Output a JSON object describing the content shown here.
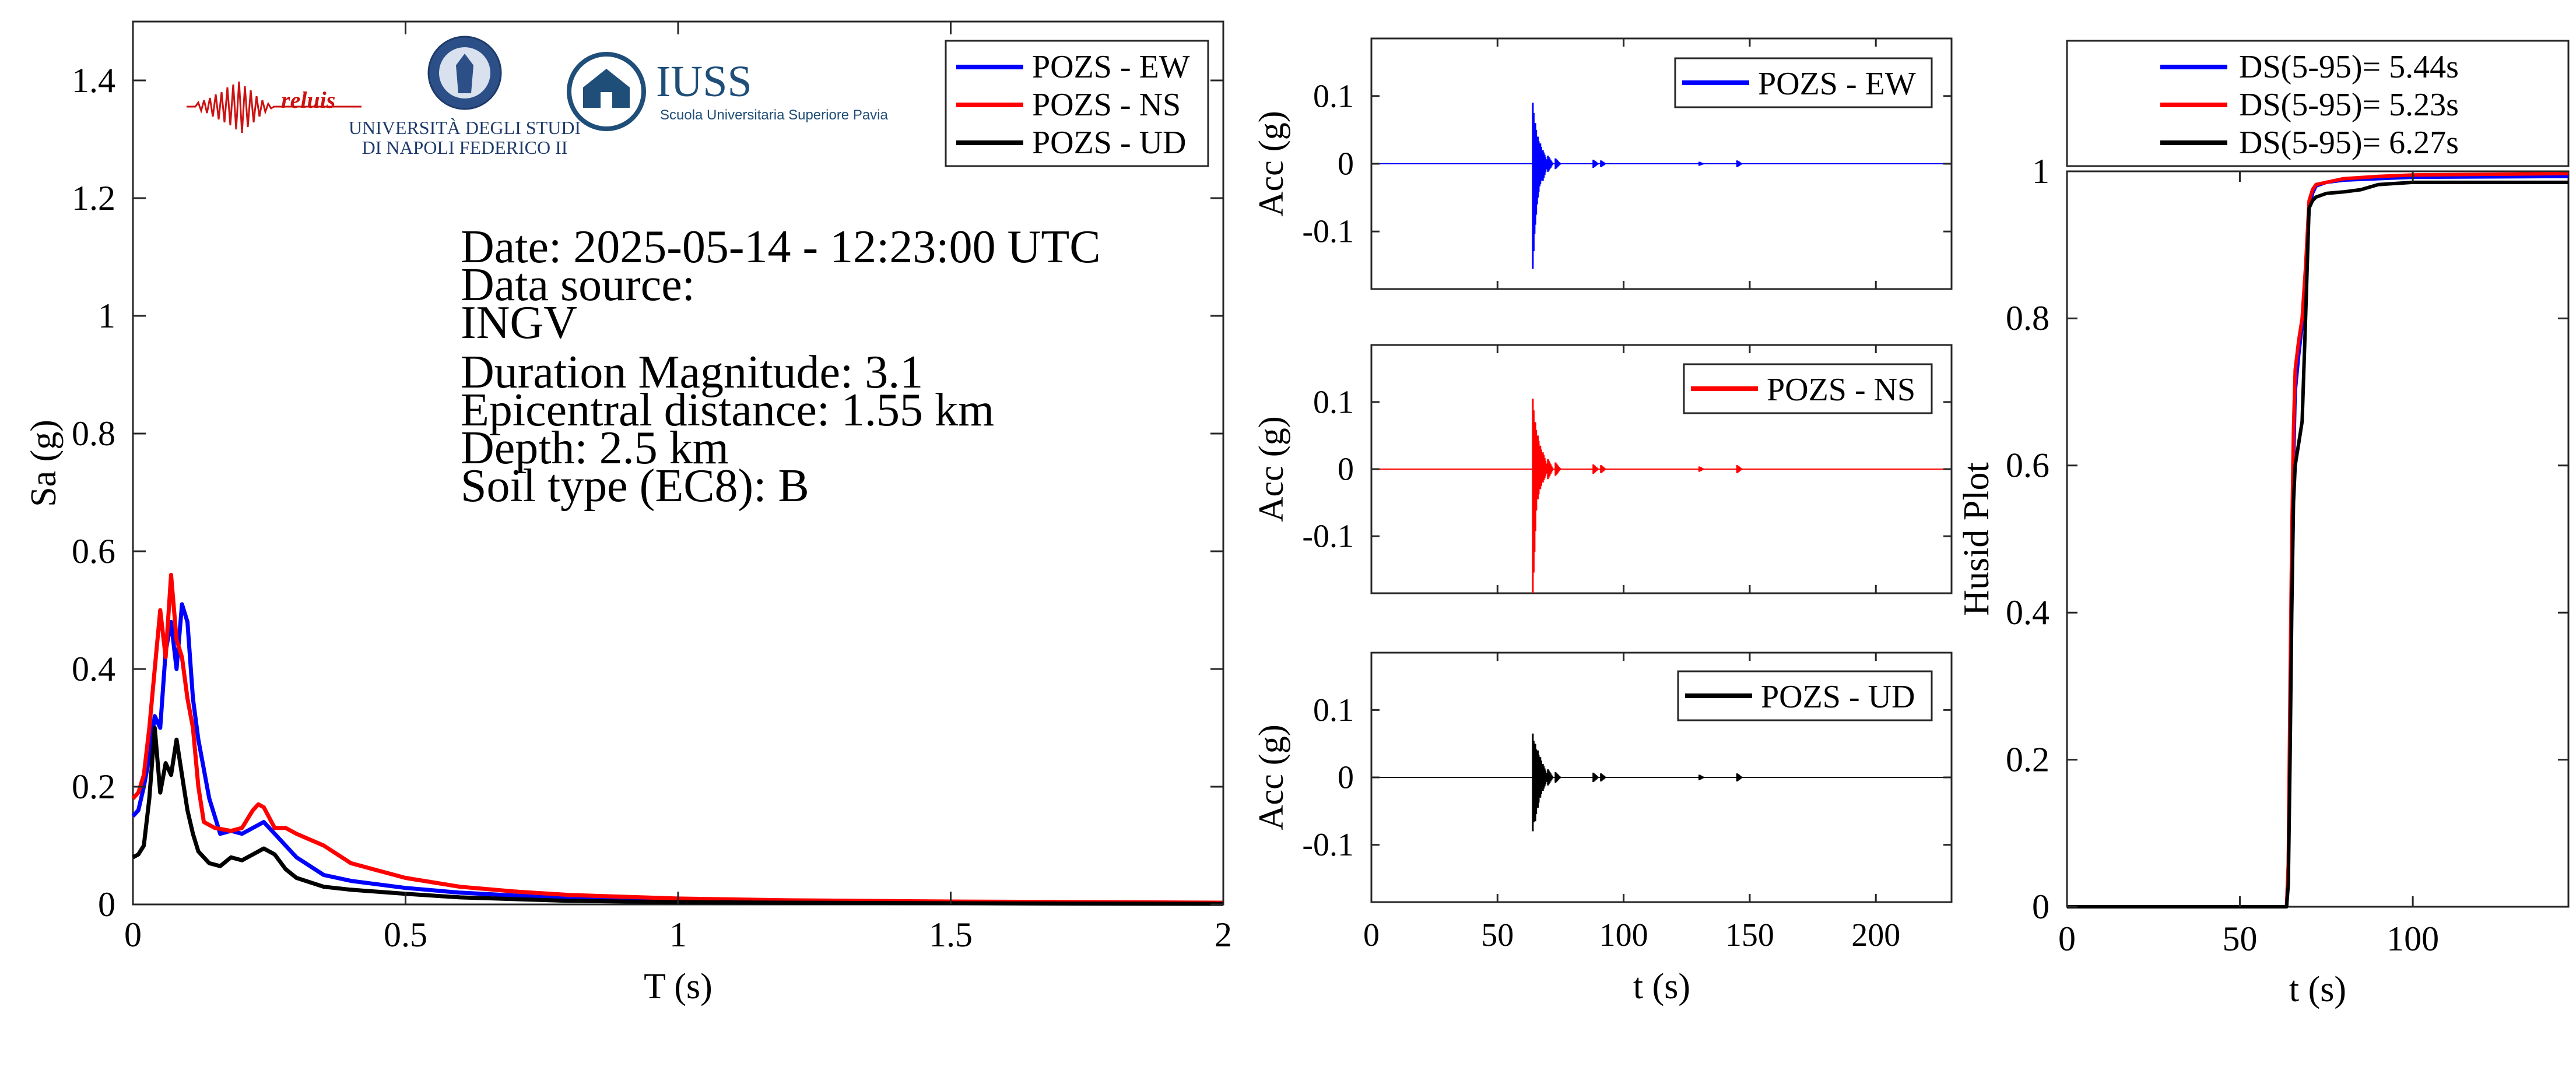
{
  "colors": {
    "ew": "#0000ff",
    "ns": "#ff0000",
    "ud": "#000000",
    "axis": "#262626",
    "reluis": "#cc1111",
    "navy": "#1f4e79",
    "iuss": "#1f4e79"
  },
  "logos": {
    "reluis": "reluis",
    "napoli_line1": "UNIVERSITÀ DEGLI STUDI",
    "napoli_line2": "DI NAPOLI FEDERICO II",
    "iuss_title": "IUSS",
    "iuss_subtitle": "Scuola Universitaria Superiore Pavia"
  },
  "info": {
    "date": "Date: 2025-05-14 - 12:23:00 UTC",
    "source_label": "Data source:",
    "source": "INGV",
    "magnitude": "Duration Magnitude: 3.1",
    "distance": "Epicentral distance: 1.55 km",
    "depth": "Depth: 2.5 km",
    "soil": "Soil type (EC8): B"
  },
  "chart_data": [
    {
      "id": "spectra",
      "type": "line",
      "xlabel": "T (s)",
      "ylabel": "Sa (g)",
      "xlim": [
        0,
        2
      ],
      "ylim": [
        0,
        1.5
      ],
      "xticks": [
        0,
        0.5,
        1,
        1.5,
        2
      ],
      "xtick_labels": [
        "0",
        "0.5",
        "1",
        "1.5",
        "2"
      ],
      "yticks": [
        0,
        0.2,
        0.4,
        0.6,
        0.8,
        1,
        1.2,
        1.4
      ],
      "ytick_labels": [
        "0",
        "0.2",
        "0.4",
        "0.6",
        "0.8",
        "1",
        "1.2",
        "1.4"
      ],
      "grid": false,
      "legend": "top-right",
      "series": [
        {
          "name": "POZS - EW",
          "color": "#0000ff",
          "x": [
            0,
            0.01,
            0.02,
            0.03,
            0.04,
            0.05,
            0.06,
            0.07,
            0.08,
            0.09,
            0.1,
            0.11,
            0.12,
            0.14,
            0.16,
            0.18,
            0.2,
            0.22,
            0.24,
            0.26,
            0.28,
            0.3,
            0.35,
            0.4,
            0.5,
            0.6,
            0.7,
            0.8,
            1.0,
            1.2,
            1.5,
            2.0
          ],
          "y": [
            0.15,
            0.16,
            0.2,
            0.25,
            0.32,
            0.3,
            0.43,
            0.48,
            0.4,
            0.51,
            0.48,
            0.35,
            0.28,
            0.18,
            0.12,
            0.125,
            0.12,
            0.13,
            0.14,
            0.12,
            0.1,
            0.08,
            0.05,
            0.04,
            0.028,
            0.02,
            0.015,
            0.01,
            0.007,
            0.005,
            0.004,
            0.002
          ]
        },
        {
          "name": "POZS - NS",
          "color": "#ff0000",
          "x": [
            0,
            0.01,
            0.02,
            0.03,
            0.04,
            0.05,
            0.06,
            0.07,
            0.08,
            0.09,
            0.1,
            0.11,
            0.12,
            0.13,
            0.15,
            0.18,
            0.2,
            0.22,
            0.23,
            0.24,
            0.26,
            0.28,
            0.3,
            0.35,
            0.4,
            0.5,
            0.6,
            0.7,
            0.8,
            1.0,
            1.2,
            1.5,
            2.0
          ],
          "y": [
            0.18,
            0.19,
            0.22,
            0.3,
            0.4,
            0.5,
            0.42,
            0.56,
            0.45,
            0.42,
            0.35,
            0.3,
            0.2,
            0.14,
            0.13,
            0.125,
            0.13,
            0.16,
            0.17,
            0.165,
            0.13,
            0.13,
            0.12,
            0.1,
            0.07,
            0.045,
            0.03,
            0.022,
            0.016,
            0.01,
            0.007,
            0.005,
            0.003
          ]
        },
        {
          "name": "POZS - UD",
          "color": "#000000",
          "x": [
            0,
            0.01,
            0.02,
            0.03,
            0.04,
            0.05,
            0.06,
            0.07,
            0.08,
            0.09,
            0.1,
            0.11,
            0.12,
            0.14,
            0.16,
            0.18,
            0.2,
            0.22,
            0.24,
            0.26,
            0.28,
            0.3,
            0.35,
            0.4,
            0.5,
            0.6,
            0.7,
            0.8,
            1.0,
            1.2,
            1.5,
            2.0
          ],
          "y": [
            0.08,
            0.085,
            0.1,
            0.18,
            0.3,
            0.19,
            0.24,
            0.22,
            0.28,
            0.22,
            0.16,
            0.12,
            0.09,
            0.07,
            0.065,
            0.08,
            0.075,
            0.085,
            0.095,
            0.085,
            0.06,
            0.045,
            0.03,
            0.025,
            0.018,
            0.012,
            0.009,
            0.006,
            0.004,
            0.003,
            0.002,
            0.001
          ]
        }
      ]
    },
    {
      "id": "acc-ew",
      "type": "line",
      "xlabel": "",
      "ylabel": "Acc (g)",
      "xlim": [
        0,
        230
      ],
      "ylim": [
        -0.185,
        0.185
      ],
      "xticks": [
        0,
        50,
        100,
        150,
        200
      ],
      "xtick_labels": [],
      "yticks": [
        -0.1,
        0,
        0.1
      ],
      "ytick_labels": [
        "-0.1",
        "0",
        "0.1"
      ],
      "legend": "top-right",
      "series": [
        {
          "name": "POZS - EW",
          "color": "#0000ff",
          "bursts": [
            [
              64,
              0.09,
              -0.155
            ],
            [
              65,
              0.06,
              -0.09
            ],
            [
              66,
              0.04,
              -0.05
            ],
            [
              67,
              0.03,
              -0.03
            ],
            [
              68,
              0.02,
              -0.025
            ],
            [
              70,
              0.012,
              -0.012
            ],
            [
              73,
              0.008,
              -0.008
            ],
            [
              88,
              0.006,
              -0.006
            ],
            [
              91,
              0.005,
              -0.005
            ],
            [
              130,
              0.003,
              -0.003
            ],
            [
              145,
              0.005,
              -0.005
            ]
          ]
        }
      ]
    },
    {
      "id": "acc-ns",
      "type": "line",
      "xlabel": "",
      "ylabel": "Acc (g)",
      "xlim": [
        0,
        230
      ],
      "ylim": [
        -0.185,
        0.185
      ],
      "xticks": [
        0,
        50,
        100,
        150,
        200
      ],
      "xtick_labels": [],
      "yticks": [
        -0.1,
        0,
        0.1
      ],
      "ytick_labels": [
        "-0.1",
        "0",
        "0.1"
      ],
      "legend": "top-right",
      "series": [
        {
          "name": "POZS - NS",
          "color": "#ff0000",
          "bursts": [
            [
              64,
              0.105,
              -0.185
            ],
            [
              65,
              0.07,
              -0.05
            ],
            [
              66,
              0.05,
              -0.045
            ],
            [
              67,
              0.035,
              -0.03
            ],
            [
              68,
              0.025,
              -0.02
            ],
            [
              70,
              0.015,
              -0.015
            ],
            [
              73,
              0.01,
              -0.01
            ],
            [
              88,
              0.007,
              -0.007
            ],
            [
              91,
              0.006,
              -0.006
            ],
            [
              130,
              0.004,
              -0.004
            ],
            [
              145,
              0.006,
              -0.006
            ]
          ]
        }
      ]
    },
    {
      "id": "acc-ud",
      "type": "line",
      "xlabel": "t (s)",
      "ylabel": "Acc (g)",
      "xlim": [
        0,
        230
      ],
      "ylim": [
        -0.185,
        0.185
      ],
      "xticks": [
        0,
        50,
        100,
        150,
        200
      ],
      "xtick_labels": [
        "0",
        "50",
        "100",
        "150",
        "200"
      ],
      "yticks": [
        -0.1,
        0,
        0.1
      ],
      "ytick_labels": [
        "-0.1",
        "0",
        "0.1"
      ],
      "legend": "top-right",
      "series": [
        {
          "name": "POZS - UD",
          "color": "#000000",
          "bursts": [
            [
              64,
              0.065,
              -0.08
            ],
            [
              65,
              0.05,
              -0.065
            ],
            [
              66,
              0.04,
              -0.045
            ],
            [
              67,
              0.03,
              -0.03
            ],
            [
              68,
              0.02,
              -0.02
            ],
            [
              70,
              0.012,
              -0.012
            ],
            [
              73,
              0.008,
              -0.008
            ],
            [
              88,
              0.007,
              -0.007
            ],
            [
              91,
              0.006,
              -0.006
            ],
            [
              130,
              0.004,
              -0.004
            ],
            [
              145,
              0.006,
              -0.006
            ]
          ]
        }
      ]
    },
    {
      "id": "husid",
      "type": "line",
      "xlabel": "t (s)",
      "ylabel": "Husid Plot",
      "xlim": [
        0,
        145
      ],
      "ylim": [
        0,
        1
      ],
      "xticks": [
        0,
        50,
        100
      ],
      "xtick_labels": [
        "0",
        "50",
        "100"
      ],
      "yticks": [
        0,
        0.2,
        0.4,
        0.6,
        0.8,
        1
      ],
      "ytick_labels": [
        "0",
        "0.2",
        "0.4",
        "0.6",
        "0.8",
        "1"
      ],
      "legend": "top",
      "series": [
        {
          "name": "DS(5-95)= 5.44s",
          "color": "#0000ff",
          "x": [
            0,
            63.5,
            64,
            64.5,
            65,
            65.5,
            66,
            67,
            68,
            69,
            70,
            71,
            72,
            75,
            80,
            90,
            100,
            145
          ],
          "y": [
            0,
            0,
            0.05,
            0.25,
            0.45,
            0.6,
            0.7,
            0.75,
            0.79,
            0.85,
            0.95,
            0.97,
            0.98,
            0.985,
            0.988,
            0.99,
            0.992,
            0.993
          ]
        },
        {
          "name": "DS(5-95)= 5.23s",
          "color": "#ff0000",
          "x": [
            0,
            63.5,
            64,
            64.5,
            65,
            65.5,
            66,
            67,
            68,
            69,
            70,
            71,
            72,
            75,
            80,
            90,
            100,
            145
          ],
          "y": [
            0,
            0,
            0.06,
            0.3,
            0.5,
            0.65,
            0.73,
            0.77,
            0.8,
            0.87,
            0.96,
            0.975,
            0.982,
            0.985,
            0.99,
            0.993,
            0.995,
            0.997
          ]
        },
        {
          "name": "DS(5-95)= 6.27s",
          "color": "#000000",
          "x": [
            0,
            63.5,
            64,
            64.5,
            65,
            65.5,
            66,
            67,
            68,
            69,
            70,
            71,
            72,
            75,
            80,
            85,
            90,
            100,
            145
          ],
          "y": [
            0,
            0,
            0.03,
            0.2,
            0.4,
            0.55,
            0.6,
            0.63,
            0.66,
            0.8,
            0.95,
            0.96,
            0.965,
            0.97,
            0.972,
            0.975,
            0.982,
            0.985,
            0.985
          ]
        }
      ]
    }
  ]
}
